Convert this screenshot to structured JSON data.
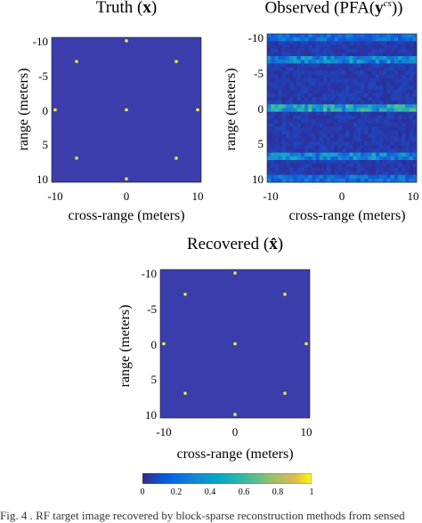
{
  "chart_data": [
    {
      "type": "heatmap",
      "title": "Truth (x)",
      "xlabel": "cross-range (meters)",
      "ylabel": "range (meters)",
      "xlim": [
        -10.5,
        10.5
      ],
      "ylim": [
        -10.5,
        10.5
      ],
      "x_ticks": [
        "-10",
        "0",
        "10"
      ],
      "y_ticks": [
        "-10",
        "-5",
        "0",
        "5",
        "10"
      ],
      "background_color": "#3a3dab",
      "point_color": "#f5f33a",
      "points": [
        {
          "x": 0,
          "y": -10
        },
        {
          "x": -7,
          "y": -7
        },
        {
          "x": 7,
          "y": -7
        },
        {
          "x": -10,
          "y": 0
        },
        {
          "x": 0,
          "y": 0
        },
        {
          "x": 10,
          "y": 0
        },
        {
          "x": -7,
          "y": 7
        },
        {
          "x": 7,
          "y": 7
        },
        {
          "x": 0,
          "y": 10
        }
      ]
    },
    {
      "type": "heatmap",
      "title": "Observed (PFA(y^cs))",
      "xlabel": "cross-range (meters)",
      "ylabel": "range (meters)",
      "xlim": [
        -10.5,
        10.5
      ],
      "ylim": [
        -10.5,
        10.5
      ],
      "x_ticks": [
        "-10",
        "0",
        "10"
      ],
      "y_ticks": [
        "-10",
        "-5",
        "0",
        "5",
        "10"
      ],
      "background_color": "#2c2f9a",
      "bright_rows": [
        {
          "y": -10,
          "level": 0.35
        },
        {
          "y": -7,
          "level": 0.45
        },
        {
          "y": 0,
          "level": 0.6
        },
        {
          "y": 7,
          "level": 0.45
        },
        {
          "y": 10,
          "level": 0.35
        }
      ]
    },
    {
      "type": "heatmap",
      "title": "Recovered (x̂)",
      "xlabel": "cross-range (meters)",
      "ylabel": "range (meters)",
      "xlim": [
        -10.5,
        10.5
      ],
      "ylim": [
        -10.5,
        10.5
      ],
      "x_ticks": [
        "-10",
        "0",
        "10"
      ],
      "y_ticks": [
        "-10",
        "-5",
        "0",
        "5",
        "10"
      ],
      "background_color": "#3a3dab",
      "point_color": "#f5f33a",
      "points": [
        {
          "x": 0,
          "y": -10
        },
        {
          "x": -7,
          "y": -7
        },
        {
          "x": 7,
          "y": -7
        },
        {
          "x": -10,
          "y": 0
        },
        {
          "x": 0,
          "y": 0
        },
        {
          "x": 10,
          "y": 0
        },
        {
          "x": -7,
          "y": 7
        },
        {
          "x": 7,
          "y": 7
        },
        {
          "x": 0,
          "y": 10
        }
      ]
    }
  ],
  "colorbar": {
    "ticks": [
      "0",
      "0.2",
      "0.4",
      "0.6",
      "0.8",
      "1"
    ],
    "range": [
      0,
      1
    ],
    "colormap": "parula"
  },
  "caption": "Fig. 4 . RF target image recovered by block-sparse reconstruction methods from sensed"
}
